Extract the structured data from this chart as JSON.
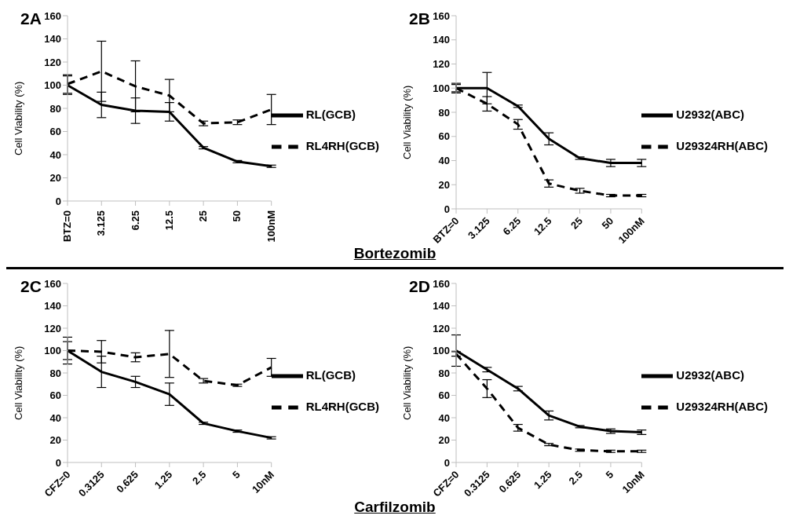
{
  "chart_data": [
    {
      "type": "line",
      "title": "2A",
      "ylabel": "Cell Viability (%)",
      "categories": [
        "BTZ=0",
        "3.125",
        "6.25",
        "12.5",
        "25",
        "50",
        "100nM"
      ],
      "ylim": [
        0,
        160
      ],
      "yticks": [
        0,
        20,
        40,
        60,
        80,
        100,
        120,
        140,
        160
      ],
      "grid": false,
      "legend": "right",
      "marker": "none",
      "annotations": [
        "Bortezomib"
      ],
      "series": [
        {
          "name": "RL(GCB)",
          "color": "#000000",
          "line_style": "solid",
          "values": [
            100,
            83,
            78,
            77,
            46,
            34,
            30
          ],
          "errors": [
            8,
            11,
            11,
            8,
            1,
            1,
            1
          ]
        },
        {
          "name": "RL4RH(GCB)",
          "color": "#000000",
          "line_style": "dashed",
          "values": [
            101,
            112,
            99,
            91,
            67,
            68,
            79
          ],
          "errors": [
            8,
            26,
            22,
            14,
            2,
            2,
            13
          ]
        }
      ]
    },
    {
      "type": "line",
      "title": "2B",
      "ylabel": "Cell Viability (%)",
      "categories": [
        "BTZ=0",
        "3.125",
        "6.25",
        "12.5",
        "25",
        "50",
        "100nM"
      ],
      "ylim": [
        0,
        160
      ],
      "yticks": [
        0,
        20,
        40,
        60,
        80,
        100,
        120,
        140,
        160
      ],
      "grid": false,
      "legend": "right",
      "marker": "none",
      "series": [
        {
          "name": "U2932(ABC)",
          "color": "#000000",
          "line_style": "solid",
          "values": [
            100,
            100,
            85,
            58,
            42,
            38,
            38
          ],
          "errors": [
            4,
            13,
            1,
            5,
            1,
            3,
            3
          ]
        },
        {
          "name": "U29324RH(ABC)",
          "color": "#000000",
          "line_style": "dashed",
          "values": [
            100,
            87,
            70,
            21,
            15,
            11,
            11
          ],
          "errors": [
            3,
            6,
            4,
            3,
            2,
            1,
            1
          ]
        }
      ]
    },
    {
      "type": "line",
      "title": "2C",
      "ylabel": "Cell Viability (%)",
      "categories": [
        "CFZ=0",
        "0.3125",
        "0.625",
        "1.25",
        "2.5",
        "5",
        "10nM"
      ],
      "ylim": [
        0,
        160
      ],
      "yticks": [
        0,
        20,
        40,
        60,
        80,
        100,
        120,
        140,
        160
      ],
      "grid": false,
      "legend": "right",
      "marker": "none",
      "annotations": [
        "Carfilzomib"
      ],
      "series": [
        {
          "name": "RL(GCB)",
          "color": "#000000",
          "line_style": "solid",
          "values": [
            100,
            81,
            72,
            61,
            35,
            28,
            22
          ],
          "errors": [
            12,
            14,
            5,
            10,
            1,
            1,
            1
          ]
        },
        {
          "name": "RL4RH(GCB)",
          "color": "#000000",
          "line_style": "dashed",
          "values": [
            100,
            99,
            94,
            97,
            73,
            69,
            85
          ],
          "errors": [
            8,
            10,
            4,
            21,
            2,
            1,
            8
          ]
        }
      ]
    },
    {
      "type": "line",
      "title": "2D",
      "ylabel": "Cell Viability (%)",
      "categories": [
        "CFZ=0",
        "0.3125",
        "0.625",
        "1.25",
        "2.5",
        "5",
        "10nM"
      ],
      "ylim": [
        0,
        160
      ],
      "yticks": [
        0,
        20,
        40,
        60,
        80,
        100,
        120,
        140,
        160
      ],
      "grid": false,
      "legend": "right",
      "marker": "none",
      "series": [
        {
          "name": "U2932(ABC)",
          "color": "#000000",
          "line_style": "solid",
          "values": [
            100,
            83,
            66,
            42,
            32,
            28,
            27
          ],
          "errors": [
            14,
            2,
            2,
            4,
            1,
            2,
            2
          ]
        },
        {
          "name": "U29324RH(ABC)",
          "color": "#000000",
          "line_style": "dashed",
          "values": [
            97,
            66,
            31,
            16,
            11,
            10,
            10
          ],
          "errors": [
            2,
            8,
            3,
            1,
            1,
            1,
            1
          ]
        }
      ]
    }
  ]
}
